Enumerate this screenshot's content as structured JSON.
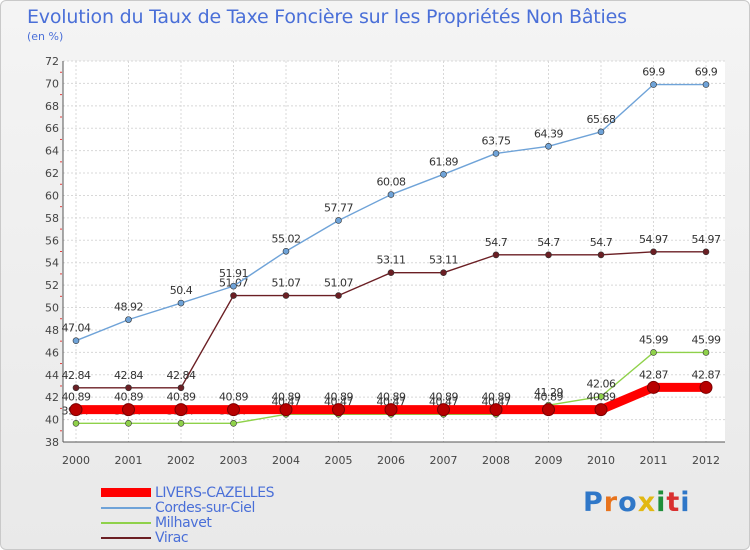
{
  "title": "Evolution du Taux de Taxe Foncière sur les Propriétés Non Bâties",
  "subtitle": "(en %)",
  "logo": [
    "P",
    "r",
    "o",
    "x",
    "i",
    "t",
    "i"
  ],
  "logo_colors": [
    "#2f77c8",
    "#e8731c",
    "#2f77c8",
    "#e2b812",
    "#1f8f3a",
    "#d93030",
    "#2f77c8"
  ],
  "chart_data": {
    "type": "line",
    "x": [
      2000,
      2001,
      2002,
      2003,
      2004,
      2005,
      2006,
      2007,
      2008,
      2009,
      2010,
      2011,
      2012
    ],
    "ylim": [
      38,
      72
    ],
    "yticks": [
      38,
      40,
      42,
      44,
      46,
      48,
      50,
      52,
      54,
      56,
      58,
      60,
      62,
      64,
      66,
      68,
      70,
      72
    ],
    "grid": true,
    "legend_position": "bottom-left",
    "series": [
      {
        "name": "Virac",
        "color": "#6b1f24",
        "values": [
          42.84,
          42.84,
          42.84,
          51.07,
          51.07,
          51.07,
          53.11,
          53.11,
          54.7,
          54.7,
          54.7,
          54.97,
          54.97
        ],
        "labels": [
          "42.84",
          "42.84",
          "42.84",
          "51.07",
          "51.07",
          "51.07",
          "53.11",
          "53.11",
          "54.7",
          "54.7",
          "54.7",
          "54.97",
          "54.97"
        ]
      },
      {
        "name": "Milhavet",
        "color": "#8fd14a",
        "values": [
          39.67,
          39.67,
          39.67,
          39.67,
          40.47,
          40.47,
          40.47,
          40.47,
          40.47,
          41.29,
          42.06,
          45.99,
          45.99
        ],
        "labels": [
          "39.67",
          "39.67",
          "39.67",
          "39.67",
          "40.47",
          "40.47",
          "40.47",
          "40.47",
          "40.47",
          "41.29",
          "42.06",
          "45.99",
          "45.99"
        ]
      },
      {
        "name": "Cordes-sur-Ciel",
        "color": "#6fa3d8",
        "values": [
          47.04,
          48.92,
          50.4,
          51.91,
          55.02,
          57.77,
          60.08,
          61.89,
          63.75,
          64.39,
          65.68,
          69.9,
          69.9
        ],
        "labels": [
          "47.04",
          "48.92",
          "50.4",
          "51.91",
          "55.02",
          "57.77",
          "60.08",
          "61.89",
          "63.75",
          "64.39",
          "65.68",
          "69.9",
          "69.9"
        ]
      },
      {
        "name": "LIVERS-CAZELLES",
        "color": "#ff0000",
        "values": [
          40.89,
          40.89,
          40.89,
          40.89,
          40.89,
          40.89,
          40.89,
          40.89,
          40.89,
          40.89,
          40.89,
          42.87,
          42.87
        ],
        "labels": [
          "40.89",
          "40.89",
          "40.89",
          "40.89",
          "40.89",
          "40.89",
          "40.89",
          "40.89",
          "40.89",
          "40.89",
          "40.89",
          "42.87",
          "42.87"
        ]
      }
    ],
    "legend": [
      {
        "name": "LIVERS-CAZELLES",
        "color": "#ff0000"
      },
      {
        "name": "Cordes-sur-Ciel",
        "color": "#6fa3d8"
      },
      {
        "name": "Milhavet",
        "color": "#8fd14a"
      },
      {
        "name": "Virac",
        "color": "#6b1f24"
      }
    ]
  }
}
